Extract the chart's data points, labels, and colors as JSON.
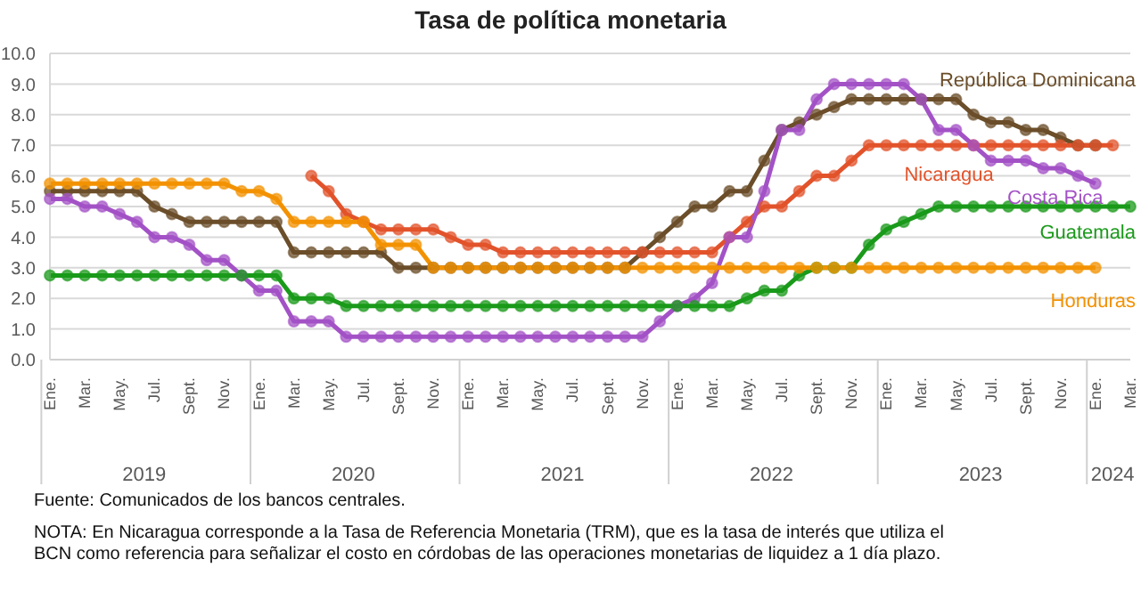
{
  "chart_data": {
    "type": "line",
    "title": "Tasa de política monetaria",
    "categories": [
      "Ene.",
      null,
      "Mar.",
      null,
      "May.",
      null,
      "Jul.",
      null,
      "Sept.",
      null,
      "Nov.",
      null,
      "Ene.",
      null,
      "Mar.",
      null,
      "May.",
      null,
      "Jul.",
      null,
      "Sept.",
      null,
      "Nov.",
      null,
      "Ene.",
      null,
      "Mar.",
      null,
      "May.",
      null,
      "Jul.",
      null,
      "Sept.",
      null,
      "Nov.",
      null,
      "Ene.",
      null,
      "Mar.",
      null,
      "May.",
      null,
      "Jul.",
      null,
      "Sept.",
      null,
      "Nov.",
      null,
      "Ene.",
      null,
      "Mar.",
      null,
      "May.",
      null,
      "Jul.",
      null,
      "Sept.",
      null,
      "Nov.",
      null,
      "Ene.",
      null,
      "Mar."
    ],
    "series": [
      {
        "name": "República Dominicana",
        "color": "#6b4e2a",
        "values": [
          5.5,
          5.5,
          5.5,
          5.5,
          5.5,
          5.5,
          5.0,
          4.75,
          4.5,
          4.5,
          4.5,
          4.5,
          4.5,
          4.5,
          3.5,
          3.5,
          3.5,
          3.5,
          3.5,
          3.5,
          3.0,
          3.0,
          3.0,
          3.0,
          3.0,
          3.0,
          3.0,
          3.0,
          3.0,
          3.0,
          3.0,
          3.0,
          3.0,
          3.0,
          3.5,
          4.0,
          4.5,
          5.0,
          5.0,
          5.5,
          5.5,
          6.5,
          7.5,
          7.75,
          8.0,
          8.25,
          8.5,
          8.5,
          8.5,
          8.5,
          8.5,
          8.5,
          8.5,
          8.0,
          7.75,
          7.75,
          7.5,
          7.5,
          7.25,
          7.0,
          7.0,
          null,
          null
        ]
      },
      {
        "name": "Nicaragua",
        "color": "#e2532b",
        "values": [
          null,
          null,
          null,
          null,
          null,
          null,
          null,
          null,
          null,
          null,
          null,
          null,
          null,
          null,
          null,
          6.0,
          5.5,
          4.75,
          4.5,
          4.25,
          4.25,
          4.25,
          4.25,
          4.0,
          3.75,
          3.75,
          3.5,
          3.5,
          3.5,
          3.5,
          3.5,
          3.5,
          3.5,
          3.5,
          3.5,
          3.5,
          3.5,
          3.5,
          3.5,
          4.0,
          4.5,
          5.0,
          5.0,
          5.5,
          6.0,
          6.0,
          6.5,
          7.0,
          7.0,
          7.0,
          7.0,
          7.0,
          7.0,
          7.0,
          7.0,
          7.0,
          7.0,
          7.0,
          7.0,
          7.0,
          7.0,
          7.0,
          null
        ]
      },
      {
        "name": "Costa Rica",
        "color": "#a352c6",
        "values": [
          5.25,
          5.25,
          5.0,
          5.0,
          4.75,
          4.5,
          4.0,
          4.0,
          3.75,
          3.25,
          3.25,
          2.75,
          2.25,
          2.25,
          1.25,
          1.25,
          1.25,
          0.75,
          0.75,
          0.75,
          0.75,
          0.75,
          0.75,
          0.75,
          0.75,
          0.75,
          0.75,
          0.75,
          0.75,
          0.75,
          0.75,
          0.75,
          0.75,
          0.75,
          0.75,
          1.25,
          1.75,
          2.0,
          2.5,
          4.0,
          4.0,
          5.5,
          7.5,
          7.5,
          8.5,
          9.0,
          9.0,
          9.0,
          9.0,
          9.0,
          8.5,
          7.5,
          7.5,
          7.0,
          6.5,
          6.5,
          6.5,
          6.25,
          6.25,
          6.0,
          5.75,
          null,
          null
        ]
      },
      {
        "name": "Guatemala",
        "color": "#1a9a1a",
        "values": [
          2.75,
          2.75,
          2.75,
          2.75,
          2.75,
          2.75,
          2.75,
          2.75,
          2.75,
          2.75,
          2.75,
          2.75,
          2.75,
          2.75,
          2.0,
          2.0,
          2.0,
          1.75,
          1.75,
          1.75,
          1.75,
          1.75,
          1.75,
          1.75,
          1.75,
          1.75,
          1.75,
          1.75,
          1.75,
          1.75,
          1.75,
          1.75,
          1.75,
          1.75,
          1.75,
          1.75,
          1.75,
          1.75,
          1.75,
          1.75,
          2.0,
          2.25,
          2.25,
          2.75,
          3.0,
          3.0,
          3.0,
          3.75,
          4.25,
          4.5,
          4.75,
          5.0,
          5.0,
          5.0,
          5.0,
          5.0,
          5.0,
          5.0,
          5.0,
          5.0,
          5.0,
          5.0,
          5.0
        ]
      },
      {
        "name": "Honduras",
        "color": "#f39200",
        "values": [
          5.75,
          5.75,
          5.75,
          5.75,
          5.75,
          5.75,
          5.75,
          5.75,
          5.75,
          5.75,
          5.75,
          5.5,
          5.5,
          5.25,
          4.5,
          4.5,
          4.5,
          4.5,
          4.5,
          3.75,
          3.75,
          3.75,
          3.0,
          3.0,
          3.0,
          3.0,
          3.0,
          3.0,
          3.0,
          3.0,
          3.0,
          3.0,
          3.0,
          3.0,
          3.0,
          3.0,
          3.0,
          3.0,
          3.0,
          3.0,
          3.0,
          3.0,
          3.0,
          3.0,
          3.0,
          3.0,
          3.0,
          3.0,
          3.0,
          3.0,
          3.0,
          3.0,
          3.0,
          3.0,
          3.0,
          3.0,
          3.0,
          3.0,
          3.0,
          3.0,
          3.0,
          null,
          null
        ]
      }
    ],
    "ylim": [
      0,
      10
    ],
    "yticks": [
      {
        "value": 0,
        "label": "0.0"
      },
      {
        "value": 1,
        "label": "1.0"
      },
      {
        "value": 2,
        "label": "2.0"
      },
      {
        "value": 3,
        "label": "3.0"
      },
      {
        "value": 4,
        "label": "4.0"
      },
      {
        "value": 5,
        "label": "5.0"
      },
      {
        "value": 6,
        "label": "6.0"
      },
      {
        "value": 7,
        "label": "7.0"
      },
      {
        "value": 8,
        "label": "8.0"
      },
      {
        "value": 9,
        "label": "9.0"
      },
      {
        "value": 10,
        "label": "10.0"
      }
    ],
    "grid": "y",
    "legend": false,
    "marker": "circle",
    "line_style": "solid",
    "annotations": [
      "2019",
      "2020",
      "2021",
      "2022",
      "2023",
      "2024",
      "Fuente: Comunicados de los bancos centrales.",
      "NOTA: En Nicaragua corresponde a la Tasa de Referencia Monetaria (TRM), que es la tasa de interés que utiliza el BCN como referencia para señalizar el costo en córdobas de las operaciones monetarias de liquidez a 1 día plazo."
    ]
  }
}
